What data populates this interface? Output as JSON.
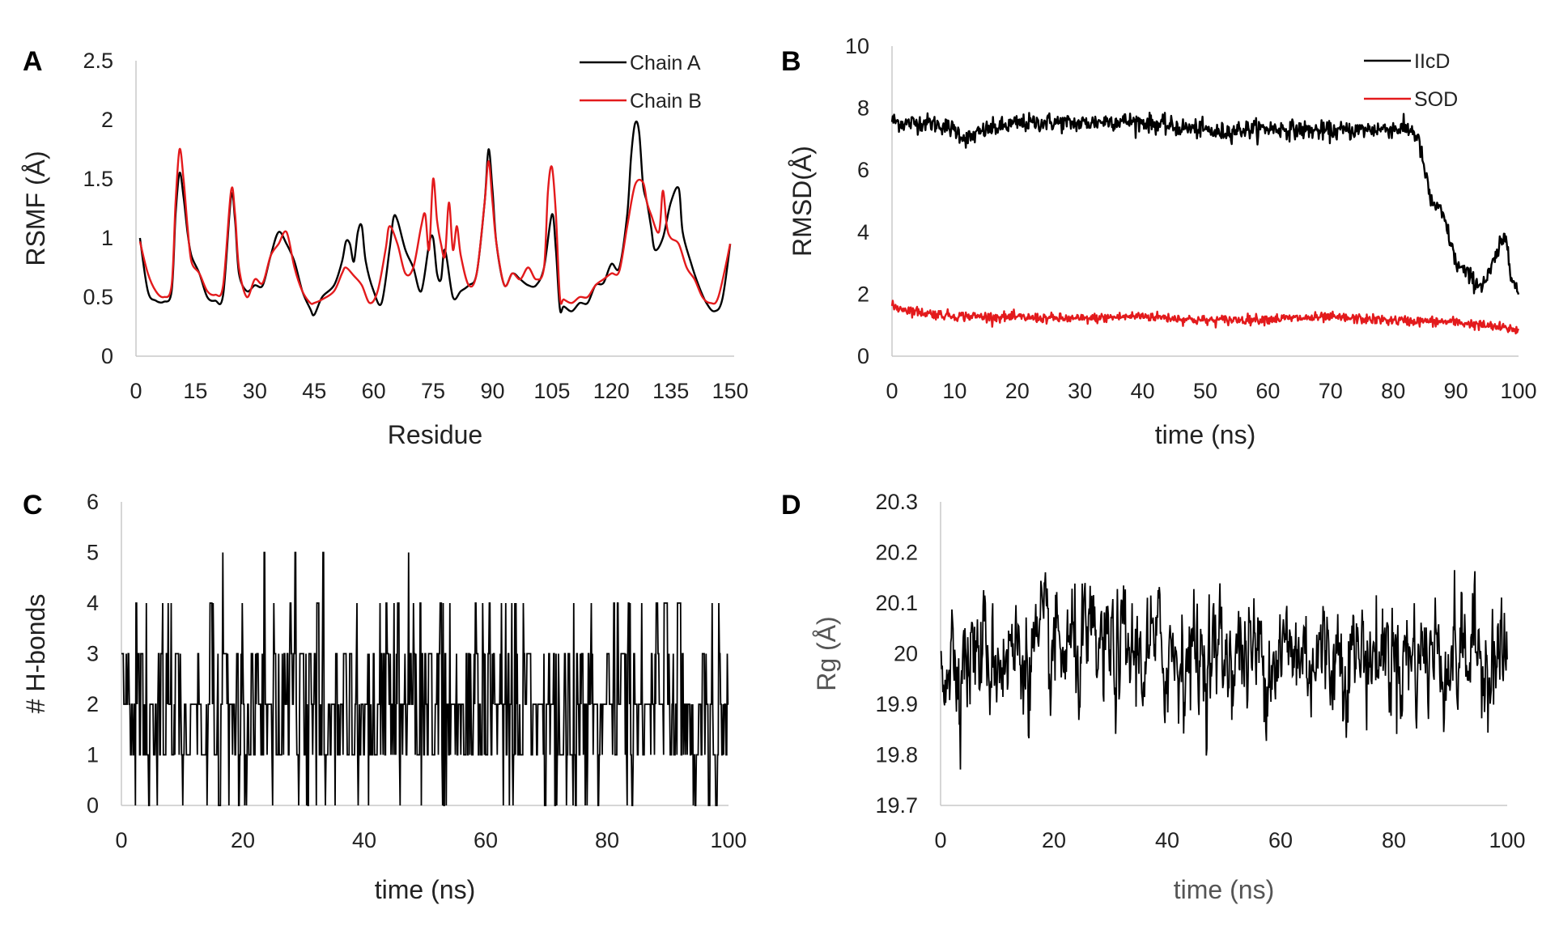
{
  "chart_data": [
    {
      "panel": "A",
      "type": "line",
      "xlabel": "Residue",
      "ylabel": "RSMF (Å)",
      "xlim": [
        0,
        151
      ],
      "ylim": [
        0,
        2.5
      ],
      "xticks": [
        0,
        15,
        30,
        45,
        60,
        75,
        90,
        105,
        120,
        135,
        150
      ],
      "yticks": [
        0,
        0.5,
        1,
        1.5,
        2,
        2.5
      ],
      "legend": "top-right",
      "series": [
        {
          "name": "Chain A",
          "color": "#000000",
          "points": [
            [
              1,
              1.0
            ],
            [
              3,
              0.55
            ],
            [
              5,
              0.47
            ],
            [
              7,
              0.46
            ],
            [
              9,
              0.55
            ],
            [
              10,
              1.2
            ],
            [
              11,
              1.55
            ],
            [
              12,
              1.35
            ],
            [
              13,
              1.05
            ],
            [
              14,
              0.85
            ],
            [
              16,
              0.7
            ],
            [
              18,
              0.5
            ],
            [
              20,
              0.47
            ],
            [
              22,
              0.52
            ],
            [
              24,
              1.35
            ],
            [
              25,
              1.15
            ],
            [
              26,
              0.7
            ],
            [
              28,
              0.55
            ],
            [
              30,
              0.6
            ],
            [
              32,
              0.6
            ],
            [
              34,
              0.85
            ],
            [
              36,
              1.05
            ],
            [
              38,
              0.95
            ],
            [
              40,
              0.8
            ],
            [
              42,
              0.55
            ],
            [
              44,
              0.4
            ],
            [
              45,
              0.35
            ],
            [
              47,
              0.5
            ],
            [
              50,
              0.6
            ],
            [
              52,
              0.8
            ],
            [
              53,
              0.97
            ],
            [
              54,
              0.95
            ],
            [
              55,
              0.8
            ],
            [
              56,
              1.05
            ],
            [
              57,
              1.1
            ],
            [
              58,
              0.8
            ],
            [
              60,
              0.55
            ],
            [
              62,
              0.45
            ],
            [
              64,
              0.9
            ],
            [
              65,
              1.17
            ],
            [
              66,
              1.15
            ],
            [
              68,
              0.9
            ],
            [
              70,
              0.75
            ],
            [
              72,
              0.55
            ],
            [
              74,
              0.95
            ],
            [
              75,
              1.0
            ],
            [
              76,
              0.7
            ],
            [
              77,
              0.65
            ],
            [
              78,
              0.9
            ],
            [
              80,
              0.5
            ],
            [
              82,
              0.55
            ],
            [
              84,
              0.6
            ],
            [
              86,
              0.7
            ],
            [
              88,
              1.3
            ],
            [
              89,
              1.75
            ],
            [
              90,
              1.4
            ],
            [
              91,
              0.95
            ],
            [
              93,
              0.6
            ],
            [
              95,
              0.7
            ],
            [
              97,
              0.65
            ],
            [
              99,
              0.6
            ],
            [
              101,
              0.6
            ],
            [
              103,
              0.75
            ],
            [
              105,
              1.2
            ],
            [
              106,
              0.9
            ],
            [
              107,
              0.4
            ],
            [
              108,
              0.42
            ],
            [
              110,
              0.38
            ],
            [
              112,
              0.45
            ],
            [
              114,
              0.45
            ],
            [
              116,
              0.6
            ],
            [
              118,
              0.62
            ],
            [
              120,
              0.78
            ],
            [
              122,
              0.75
            ],
            [
              124,
              1.2
            ],
            [
              125,
              1.7
            ],
            [
              126,
              1.97
            ],
            [
              127,
              1.9
            ],
            [
              128,
              1.45
            ],
            [
              129,
              1.3
            ],
            [
              130,
              1.1
            ],
            [
              131,
              0.9
            ],
            [
              133,
              1.0
            ],
            [
              135,
              1.3
            ],
            [
              137,
              1.42
            ],
            [
              138,
              1.05
            ],
            [
              140,
              0.8
            ],
            [
              142,
              0.6
            ],
            [
              144,
              0.45
            ],
            [
              146,
              0.38
            ],
            [
              148,
              0.48
            ],
            [
              150,
              0.95
            ]
          ]
        },
        {
          "name": "Chain B",
          "color": "#e31a1c",
          "points": [
            [
              1,
              0.97
            ],
            [
              3,
              0.7
            ],
            [
              5,
              0.55
            ],
            [
              7,
              0.5
            ],
            [
              9,
              0.6
            ],
            [
              10,
              1.3
            ],
            [
              11,
              1.75
            ],
            [
              12,
              1.5
            ],
            [
              13,
              1.1
            ],
            [
              14,
              0.8
            ],
            [
              16,
              0.7
            ],
            [
              18,
              0.55
            ],
            [
              20,
              0.52
            ],
            [
              22,
              0.6
            ],
            [
              24,
              1.4
            ],
            [
              25,
              1.2
            ],
            [
              26,
              0.75
            ],
            [
              28,
              0.5
            ],
            [
              30,
              0.65
            ],
            [
              32,
              0.62
            ],
            [
              34,
              0.85
            ],
            [
              36,
              0.95
            ],
            [
              38,
              1.05
            ],
            [
              40,
              0.75
            ],
            [
              42,
              0.55
            ],
            [
              44,
              0.45
            ],
            [
              45,
              0.45
            ],
            [
              47,
              0.48
            ],
            [
              50,
              0.55
            ],
            [
              52,
              0.7
            ],
            [
              53,
              0.75
            ],
            [
              55,
              0.68
            ],
            [
              57,
              0.6
            ],
            [
              59,
              0.45
            ],
            [
              61,
              0.55
            ],
            [
              63,
              0.9
            ],
            [
              64,
              1.1
            ],
            [
              66,
              0.95
            ],
            [
              68,
              0.7
            ],
            [
              70,
              0.75
            ],
            [
              72,
              1.1
            ],
            [
              73,
              1.2
            ],
            [
              74,
              0.9
            ],
            [
              75,
              1.5
            ],
            [
              76,
              1.15
            ],
            [
              77,
              0.95
            ],
            [
              78,
              0.85
            ],
            [
              79,
              1.3
            ],
            [
              80,
              0.9
            ],
            [
              81,
              1.1
            ],
            [
              82,
              0.85
            ],
            [
              84,
              0.6
            ],
            [
              86,
              0.7
            ],
            [
              88,
              1.3
            ],
            [
              89,
              1.65
            ],
            [
              90,
              1.3
            ],
            [
              91,
              0.95
            ],
            [
              93,
              0.6
            ],
            [
              95,
              0.7
            ],
            [
              97,
              0.65
            ],
            [
              99,
              0.75
            ],
            [
              101,
              0.65
            ],
            [
              103,
              0.75
            ],
            [
              104,
              1.4
            ],
            [
              105,
              1.6
            ],
            [
              106,
              1.2
            ],
            [
              107,
              0.5
            ],
            [
              108,
              0.48
            ],
            [
              110,
              0.45
            ],
            [
              112,
              0.5
            ],
            [
              114,
              0.5
            ],
            [
              116,
              0.6
            ],
            [
              118,
              0.65
            ],
            [
              120,
              0.7
            ],
            [
              122,
              0.72
            ],
            [
              124,
              1.1
            ],
            [
              126,
              1.45
            ],
            [
              128,
              1.47
            ],
            [
              129,
              1.3
            ],
            [
              130,
              1.2
            ],
            [
              132,
              1.05
            ],
            [
              133,
              1.4
            ],
            [
              134,
              1.1
            ],
            [
              135,
              1.0
            ],
            [
              137,
              0.95
            ],
            [
              139,
              0.75
            ],
            [
              141,
              0.65
            ],
            [
              143,
              0.5
            ],
            [
              145,
              0.45
            ],
            [
              147,
              0.5
            ],
            [
              150,
              0.95
            ]
          ]
        }
      ]
    },
    {
      "panel": "B",
      "type": "line",
      "xlabel": "time (ns)",
      "ylabel": "RMSD(Å)",
      "xlim": [
        0,
        100
      ],
      "ylim": [
        0,
        10
      ],
      "xticks": [
        0,
        10,
        20,
        30,
        40,
        50,
        60,
        70,
        80,
        90,
        100
      ],
      "yticks": [
        0,
        2,
        4,
        6,
        8,
        10
      ],
      "legend": "top-right",
      "series": [
        {
          "name": "IIcD",
          "color": "#000000",
          "points": [
            [
              0,
              7.6
            ],
            [
              2,
              7.5
            ],
            [
              5,
              7.55
            ],
            [
              8,
              7.45
            ],
            [
              10,
              7.3
            ],
            [
              12,
              7.0
            ],
            [
              13,
              7.1
            ],
            [
              15,
              7.3
            ],
            [
              20,
              7.5
            ],
            [
              25,
              7.55
            ],
            [
              30,
              7.5
            ],
            [
              35,
              7.6
            ],
            [
              40,
              7.55
            ],
            [
              45,
              7.4
            ],
            [
              50,
              7.3
            ],
            [
              52,
              7.2
            ],
            [
              55,
              7.3
            ],
            [
              60,
              7.35
            ],
            [
              65,
              7.3
            ],
            [
              70,
              7.25
            ],
            [
              75,
              7.3
            ],
            [
              80,
              7.35
            ],
            [
              83,
              7.3
            ],
            [
              84,
              7.0
            ],
            [
              85,
              6.0
            ],
            [
              86,
              5.0
            ],
            [
              87,
              4.8
            ],
            [
              88,
              4.5
            ],
            [
              89,
              3.8
            ],
            [
              90,
              3.0
            ],
            [
              91,
              2.8
            ],
            [
              92,
              2.6
            ],
            [
              93,
              2.4
            ],
            [
              94,
              2.3
            ],
            [
              95,
              2.5
            ],
            [
              96,
              3.0
            ],
            [
              97,
              3.5
            ],
            [
              98,
              3.9
            ],
            [
              99,
              2.5
            ],
            [
              100,
              2.0
            ]
          ],
          "noise": 0.15
        },
        {
          "name": "SOD",
          "color": "#e31a1c",
          "points": [
            [
              0,
              1.6
            ],
            [
              5,
              1.4
            ],
            [
              10,
              1.3
            ],
            [
              20,
              1.25
            ],
            [
              30,
              1.2
            ],
            [
              40,
              1.3
            ],
            [
              50,
              1.15
            ],
            [
              60,
              1.2
            ],
            [
              70,
              1.25
            ],
            [
              80,
              1.15
            ],
            [
              90,
              1.1
            ],
            [
              100,
              0.85
            ]
          ],
          "noise": 0.08
        }
      ]
    },
    {
      "panel": "C",
      "type": "line",
      "xlabel": "time (ns)",
      "ylabel": "# H-bonds",
      "xlim": [
        0,
        100
      ],
      "ylim": [
        0,
        6
      ],
      "xticks": [
        0,
        20,
        40,
        60,
        80,
        100
      ],
      "yticks": [
        0,
        1,
        2,
        3,
        4,
        5,
        6
      ],
      "color": "#000000",
      "samples": 1000,
      "discrete_levels": [
        0,
        1,
        2,
        3,
        4,
        5
      ],
      "level_probabilities": [
        0.05,
        0.3,
        0.35,
        0.22,
        0.07,
        0.01
      ]
    },
    {
      "panel": "D",
      "type": "line",
      "xlabel": "time (ns)",
      "ylabel": "Rg (Å)",
      "xlim": [
        0,
        100
      ],
      "ylim": [
        19.7,
        20.3
      ],
      "xticks": [
        0,
        20,
        40,
        60,
        80,
        100
      ],
      "yticks": [
        19.7,
        19.8,
        19.9,
        20,
        20.1,
        20.2,
        20.3
      ],
      "color": "#000000",
      "samples": 1000,
      "mean": 20.0,
      "std": 0.06
    }
  ]
}
